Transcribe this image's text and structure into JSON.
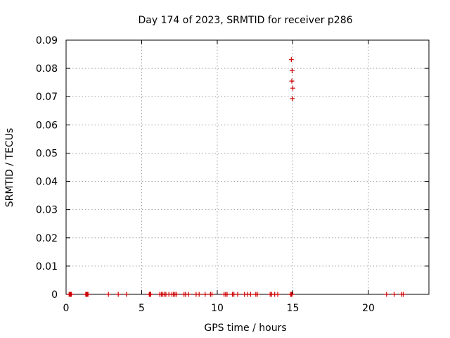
{
  "chart_data": {
    "type": "scatter",
    "title": "Day 174 of 2023, SRMTID for receiver p286",
    "xlabel": "GPS time / hours",
    "ylabel": "SRMTID / TECUs",
    "xlim": [
      0,
      24
    ],
    "ylim": [
      0,
      0.09
    ],
    "xticks": [
      0,
      5,
      10,
      15,
      20
    ],
    "xtick_labels": [
      "0",
      "5",
      "10",
      "15",
      "20"
    ],
    "yticks": [
      0,
      0.01,
      0.02,
      0.03,
      0.04,
      0.05,
      0.06,
      0.07,
      0.08,
      0.09
    ],
    "ytick_labels": [
      "0",
      "0.01",
      "0.02",
      "0.03",
      "0.04",
      "0.05",
      "0.06",
      "0.07",
      "0.08",
      "0.09"
    ],
    "grid": true,
    "marker": "+",
    "marker_color": "#cc0000",
    "series": [
      {
        "name": "SRMTID",
        "x": [
          0.2,
          0.25,
          0.3,
          0.35,
          1.3,
          1.35,
          1.4,
          1.45,
          2.8,
          3.45,
          4.0,
          5.5,
          5.55,
          5.6,
          6.2,
          6.3,
          6.4,
          6.5,
          6.6,
          6.8,
          7.0,
          7.1,
          7.2,
          7.3,
          7.8,
          7.9,
          8.1,
          8.6,
          8.8,
          9.2,
          9.55,
          9.65,
          10.45,
          10.55,
          10.65,
          11.0,
          11.1,
          11.35,
          11.8,
          12.0,
          12.2,
          12.55,
          12.65,
          13.5,
          13.6,
          13.8,
          14.0,
          14.85,
          14.9,
          14.95,
          14.9,
          14.95,
          14.93,
          15.0,
          14.97,
          21.2,
          21.7,
          22.2,
          22.3
        ],
        "y": [
          0,
          0,
          0,
          0,
          0,
          0,
          0,
          0,
          0,
          0,
          0,
          0,
          0,
          0,
          0,
          0,
          0,
          0,
          0,
          0,
          0,
          0,
          0,
          0,
          0,
          0,
          0,
          0,
          0,
          0,
          0,
          0,
          0,
          0,
          0,
          0,
          0,
          0,
          0,
          0,
          0,
          0,
          0,
          0,
          0,
          0,
          0,
          0,
          0,
          0,
          0.0831,
          0.0792,
          0.0755,
          0.073,
          0.0693,
          0,
          0,
          0,
          0
        ]
      }
    ]
  }
}
